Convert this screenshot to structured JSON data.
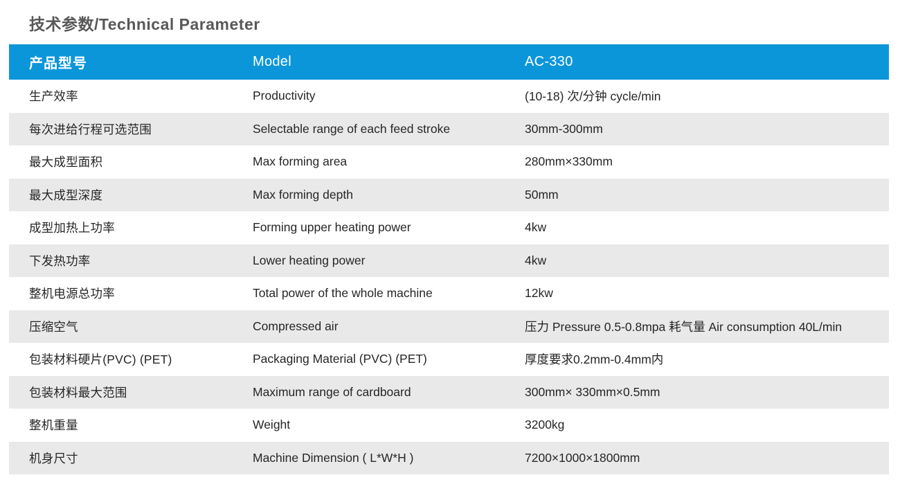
{
  "page": {
    "title": "技术参数/Technical Parameter"
  },
  "colors": {
    "header_bg": "#0c96da",
    "stripe_bg": "#e9e9e9",
    "title_color": "#58585a",
    "text_color": "#262626"
  },
  "table": {
    "header": {
      "col_cn": "产品型号",
      "col_en": "Model",
      "col_value": "AC-330"
    },
    "rows": [
      {
        "cn": "生产效率",
        "en": "Productivity",
        "value": "(10-18) 次/分钟 cycle/min"
      },
      {
        "cn": "每次进给行程可选范围",
        "en": "Selectable range of each feed stroke",
        "value": "30mm-300mm"
      },
      {
        "cn": "最大成型面积",
        "en": "Max forming area",
        "value": "280mm×330mm"
      },
      {
        "cn": "最大成型深度",
        "en": "Max forming depth",
        "value": "50mm"
      },
      {
        "cn": "成型加热上功率",
        "en": "Forming upper heating power",
        "value": "4kw"
      },
      {
        "cn": "下发热功率",
        "en": "Lower heating power",
        "value": "4kw"
      },
      {
        "cn": "整机电源总功率",
        "en": "Total power of the whole machine",
        "value": "12kw"
      },
      {
        "cn": "压缩空气",
        "en": "Compressed air",
        "value": "压力 Pressure 0.5-0.8mpa 耗气量 Air consumption 40L/min"
      },
      {
        "cn": "包装材料硬片(PVC) (PET)",
        "en": "Packaging Material (PVC) (PET)",
        "value": "厚度要求0.2mm-0.4mm内"
      },
      {
        "cn": "包装材料最大范围",
        "en": "Maximum range of cardboard",
        "value": "300mm× 330mm×0.5mm"
      },
      {
        "cn": "整机重量",
        "en": "Weight",
        "value": "3200kg"
      },
      {
        "cn": "机身尺寸",
        "en": "Machine Dimension ( L*W*H )",
        "value": "7200×1000×1800mm"
      }
    ]
  }
}
